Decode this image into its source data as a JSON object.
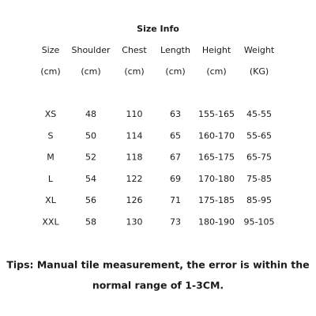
{
  "title": "Size Info",
  "table": {
    "header": [
      "Size",
      "Shoulder",
      "Chest",
      "Length",
      "Height",
      "Weight"
    ],
    "units": [
      "(cm)",
      "(cm)",
      "(cm)",
      "(cm)",
      "(cm)",
      "(KG)"
    ],
    "rows": [
      [
        "XS",
        "48",
        "110",
        "63",
        "155-165",
        "45-55"
      ],
      [
        "S",
        "50",
        "114",
        "65",
        "160-170",
        "55-65"
      ],
      [
        "M",
        "52",
        "118",
        "67",
        "165-175",
        "65-75"
      ],
      [
        "L",
        "54",
        "122",
        "69",
        "170-180",
        "75-85"
      ],
      [
        "XL",
        "56",
        "126",
        "71",
        "175-185",
        "85-95"
      ],
      [
        "XXL",
        "58",
        "130",
        "73",
        "180-190",
        "95-105"
      ]
    ]
  },
  "tips": [
    "Tips: Manual tile measurement, the error is within the",
    "normal range of 1-3CM."
  ]
}
